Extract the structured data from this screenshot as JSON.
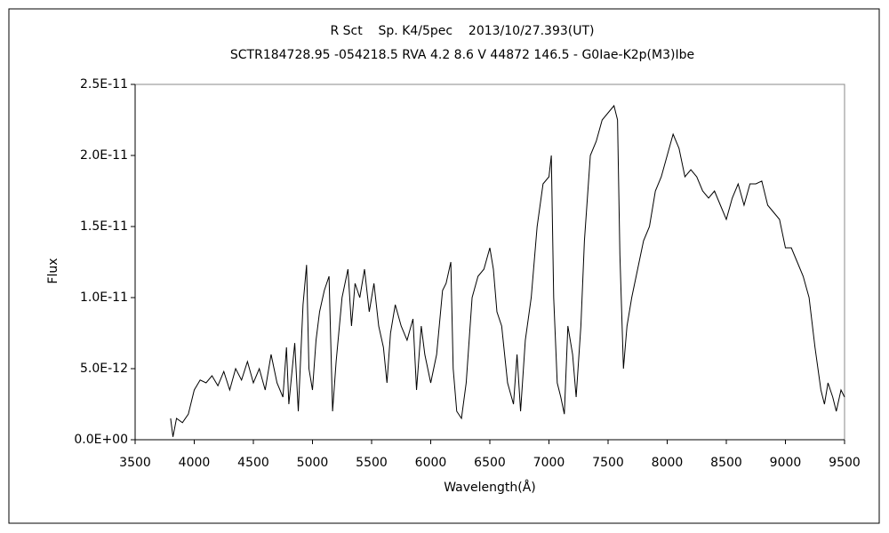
{
  "chart_data": {
    "type": "line",
    "title": "R Sct    Sp. K4/5pec    2013/10/27.393(UT)",
    "subtitle": "SCTR184728.95 -054218.5 RVA 4.2 8.6 V 44872 146.5 - G0Iae-K2p(M3)Ibe",
    "xlabel": "Wavelength(Å)",
    "ylabel": "Flux",
    "color": "#000000",
    "x": [
      3800,
      3820,
      3850,
      3900,
      3950,
      4000,
      4050,
      4100,
      4150,
      4200,
      4250,
      4300,
      4350,
      4400,
      4450,
      4500,
      4550,
      4600,
      4650,
      4700,
      4750,
      4780,
      4800,
      4850,
      4880,
      4920,
      4950,
      4970,
      5000,
      5030,
      5060,
      5100,
      5140,
      5170,
      5200,
      5250,
      5300,
      5330,
      5360,
      5400,
      5440,
      5480,
      5520,
      5560,
      5600,
      5630,
      5660,
      5700,
      5750,
      5800,
      5850,
      5880,
      5920,
      5950,
      6000,
      6050,
      6100,
      6130,
      6170,
      6190,
      6220,
      6260,
      6300,
      6350,
      6400,
      6450,
      6500,
      6530,
      6560,
      6600,
      6650,
      6700,
      6730,
      6760,
      6800,
      6850,
      6900,
      6950,
      7000,
      7020,
      7040,
      7070,
      7100,
      7130,
      7160,
      7200,
      7230,
      7270,
      7300,
      7350,
      7400,
      7450,
      7500,
      7550,
      7580,
      7600,
      7630,
      7660,
      7700,
      7750,
      7800,
      7850,
      7900,
      7950,
      8000,
      8050,
      8100,
      8150,
      8200,
      8250,
      8300,
      8350,
      8400,
      8450,
      8500,
      8550,
      8600,
      8650,
      8700,
      8750,
      8800,
      8850,
      8900,
      8950,
      9000,
      9050,
      9100,
      9150,
      9200,
      9250,
      9300,
      9330,
      9360,
      9400,
      9430,
      9470,
      9500
    ],
    "values": [
      1.5e-12,
      2e-13,
      1.5e-12,
      1.2e-12,
      1.8e-12,
      3.5e-12,
      4.2e-12,
      4e-12,
      4.5e-12,
      3.8e-12,
      4.8e-12,
      3.5e-12,
      5e-12,
      4.2e-12,
      5.5e-12,
      4e-12,
      5e-12,
      3.5e-12,
      6e-12,
      4e-12,
      3e-12,
      6.5e-12,
      2.5e-12,
      6.8e-12,
      2e-12,
      9.5e-12,
      1.23e-11,
      5e-12,
      3.5e-12,
      7e-12,
      9e-12,
      1.05e-11,
      1.15e-11,
      2e-12,
      5.5e-12,
      1e-11,
      1.2e-11,
      8e-12,
      1.1e-11,
      1e-11,
      1.2e-11,
      9e-12,
      1.1e-11,
      8e-12,
      6.5e-12,
      4e-12,
      7.5e-12,
      9.5e-12,
      8e-12,
      7e-12,
      8.5e-12,
      3.5e-12,
      8e-12,
      6e-12,
      4e-12,
      6e-12,
      1.05e-11,
      1.1e-11,
      1.25e-11,
      5e-12,
      2e-12,
      1.5e-12,
      4e-12,
      1e-11,
      1.15e-11,
      1.2e-11,
      1.35e-11,
      1.2e-11,
      9e-12,
      8e-12,
      4e-12,
      2.5e-12,
      6e-12,
      2e-12,
      7e-12,
      1e-11,
      1.5e-11,
      1.8e-11,
      1.85e-11,
      2e-11,
      1e-11,
      4e-12,
      3e-12,
      1.8e-12,
      8e-12,
      6e-12,
      3e-12,
      8e-12,
      1.4e-11,
      2e-11,
      2.1e-11,
      2.25e-11,
      2.3e-11,
      2.35e-11,
      2.25e-11,
      1.3e-11,
      5e-12,
      8e-12,
      1e-11,
      1.2e-11,
      1.4e-11,
      1.5e-11,
      1.75e-11,
      1.85e-11,
      2e-11,
      2.15e-11,
      2.05e-11,
      1.85e-11,
      1.9e-11,
      1.85e-11,
      1.75e-11,
      1.7e-11,
      1.75e-11,
      1.65e-11,
      1.55e-11,
      1.7e-11,
      1.8e-11,
      1.65e-11,
      1.8e-11,
      1.8e-11,
      1.82e-11,
      1.65e-11,
      1.6e-11,
      1.55e-11,
      1.35e-11,
      1.35e-11,
      1.25e-11,
      1.15e-11,
      1e-11,
      6.5e-12,
      3.5e-12,
      2.5e-12,
      4e-12,
      3e-12,
      2e-12,
      3.5e-12,
      3e-12
    ],
    "xlim": [
      3500,
      9500
    ],
    "xticks": [
      3500,
      4000,
      4500,
      5000,
      5500,
      6000,
      6500,
      7000,
      7500,
      8000,
      8500,
      9000,
      9500
    ],
    "ylim": [
      0,
      2.5e-11
    ],
    "yticks": [
      {
        "value": 0,
        "label": "0.0E+00"
      },
      {
        "value": 5e-12,
        "label": "5.0E-12"
      },
      {
        "value": 1e-11,
        "label": "1.0E-11"
      },
      {
        "value": 1.5e-11,
        "label": "1.5E-11"
      },
      {
        "value": 2e-11,
        "label": "2.0E-11"
      },
      {
        "value": 2.5e-11,
        "label": "2.5E-11"
      }
    ]
  }
}
